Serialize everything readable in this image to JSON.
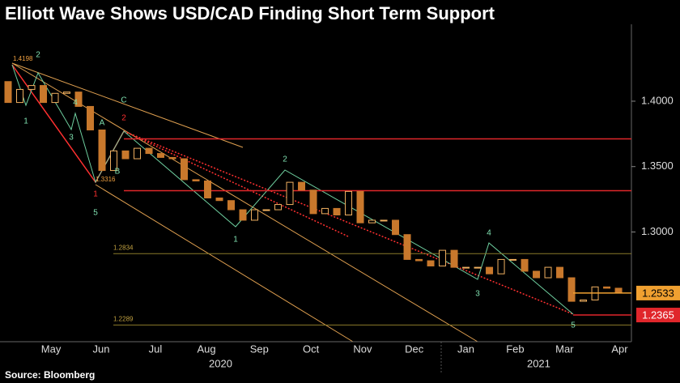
{
  "chart_data": {
    "type": "candlestick",
    "title": "Elliott Wave Shows USD/CAD Finding Short Term Support",
    "source": "Source: Bloomberg",
    "open": [
      1.415,
      1.399,
      1.409,
      1.412,
      1.399,
      1.406,
      1.407,
      1.396,
      1.378,
      1.347,
      1.362,
      1.356,
      1.364,
      1.36,
      1.357,
      1.356,
      1.34,
      1.339,
      1.326,
      1.324,
      1.317,
      1.309,
      1.317,
      1.317,
      1.321,
      1.338,
      1.332,
      1.314,
      1.318,
      1.313,
      1.331,
      1.307,
      1.309,
      1.309,
      1.298,
      1.279,
      1.278,
      1.274,
      1.286,
      1.273,
      1.273,
      1.273,
      1.268,
      1.279,
      1.279,
      1.27,
      1.265,
      1.273,
      1.265,
      1.247,
      1.248,
      1.258,
      1.257
    ],
    "close": [
      1.399,
      1.409,
      1.412,
      1.399,
      1.406,
      1.407,
      1.396,
      1.378,
      1.347,
      1.362,
      1.356,
      1.364,
      1.36,
      1.357,
      1.356,
      1.34,
      1.339,
      1.326,
      1.324,
      1.317,
      1.309,
      1.317,
      1.317,
      1.321,
      1.338,
      1.332,
      1.314,
      1.318,
      1.313,
      1.331,
      1.307,
      1.309,
      1.309,
      1.298,
      1.279,
      1.278,
      1.274,
      1.286,
      1.273,
      1.273,
      1.273,
      1.268,
      1.279,
      1.279,
      1.27,
      1.265,
      1.273,
      1.265,
      1.247,
      1.248,
      1.258,
      1.257,
      1.2533
    ],
    "up_color": "#f0b060",
    "down_color": "#c8782c",
    "xlim": [
      -0.69,
      53.1
    ],
    "xticks": [
      {
        "value": 3.66,
        "label": "May"
      },
      {
        "value": 7.93,
        "label": "Jun"
      },
      {
        "value": 12.55,
        "label": "Jul"
      },
      {
        "value": 16.9,
        "label": "Aug"
      },
      {
        "value": 21.4,
        "label": "Sep"
      },
      {
        "value": 25.8,
        "label": "Oct"
      },
      {
        "value": 30.2,
        "label": "Nov"
      },
      {
        "value": 34.6,
        "label": "Dec"
      },
      {
        "value": 39.0,
        "label": "Jan"
      },
      {
        "value": 43.2,
        "label": "Feb"
      },
      {
        "value": 47.4,
        "label": "Mar"
      },
      {
        "value": 52.1,
        "label": "Apr"
      }
    ],
    "years": [
      {
        "value": 18.1,
        "label": "2020"
      },
      {
        "value": 45.2,
        "label": "2021"
      }
    ],
    "ylim": [
      1.2161,
      1.4588
    ],
    "yticks": [
      {
        "value": 1.3,
        "label": "1.3000"
      },
      {
        "value": 1.35,
        "label": "1.3500"
      },
      {
        "value": 1.4,
        "label": "1.4000"
      }
    ],
    "levels": [
      {
        "value": 1.3712,
        "color": "#e0262b"
      },
      {
        "value": 1.3316,
        "color": "#e0262b"
      },
      {
        "value": 1.2834,
        "color": "#8a7a2a"
      },
      {
        "value": 1.2289,
        "color": "#8a7a2a"
      }
    ],
    "level_labels": [
      2,
      3
    ],
    "price_tags": [
      {
        "value": 1.2533,
        "color": "#f0a030"
      },
      {
        "value": 1.2365,
        "color": "#e0262b"
      }
    ],
    "annotations": [
      {
        "text": "1.4198",
        "color": "#f0a040"
      },
      {
        "text": "2",
        "color": "#7fe0b0"
      },
      {
        "text": "1",
        "color": "#7fe0b0"
      },
      {
        "text": "3",
        "color": "#7fe0b0"
      },
      {
        "text": "4",
        "color": "#7fe0b0"
      },
      {
        "text": "A",
        "color": "#7fe0b0"
      },
      {
        "text": "B",
        "color": "#7fe0b0"
      },
      {
        "text": "C",
        "color": "#7fe0b0"
      },
      {
        "text": "2",
        "color": "#ff3030"
      },
      {
        "text": "1.3316",
        "color": "#f0a040"
      },
      {
        "text": "1",
        "color": "#ff3030"
      },
      {
        "text": "5",
        "color": "#7fe0b0"
      },
      {
        "text": "1",
        "color": "#7fe0b0"
      },
      {
        "text": "2",
        "color": "#7fe0b0"
      },
      {
        "text": "3",
        "color": "#7fe0b0"
      },
      {
        "text": "4",
        "color": "#7fe0b0"
      },
      {
        "text": "5",
        "color": "#7fe0b0"
      }
    ]
  }
}
